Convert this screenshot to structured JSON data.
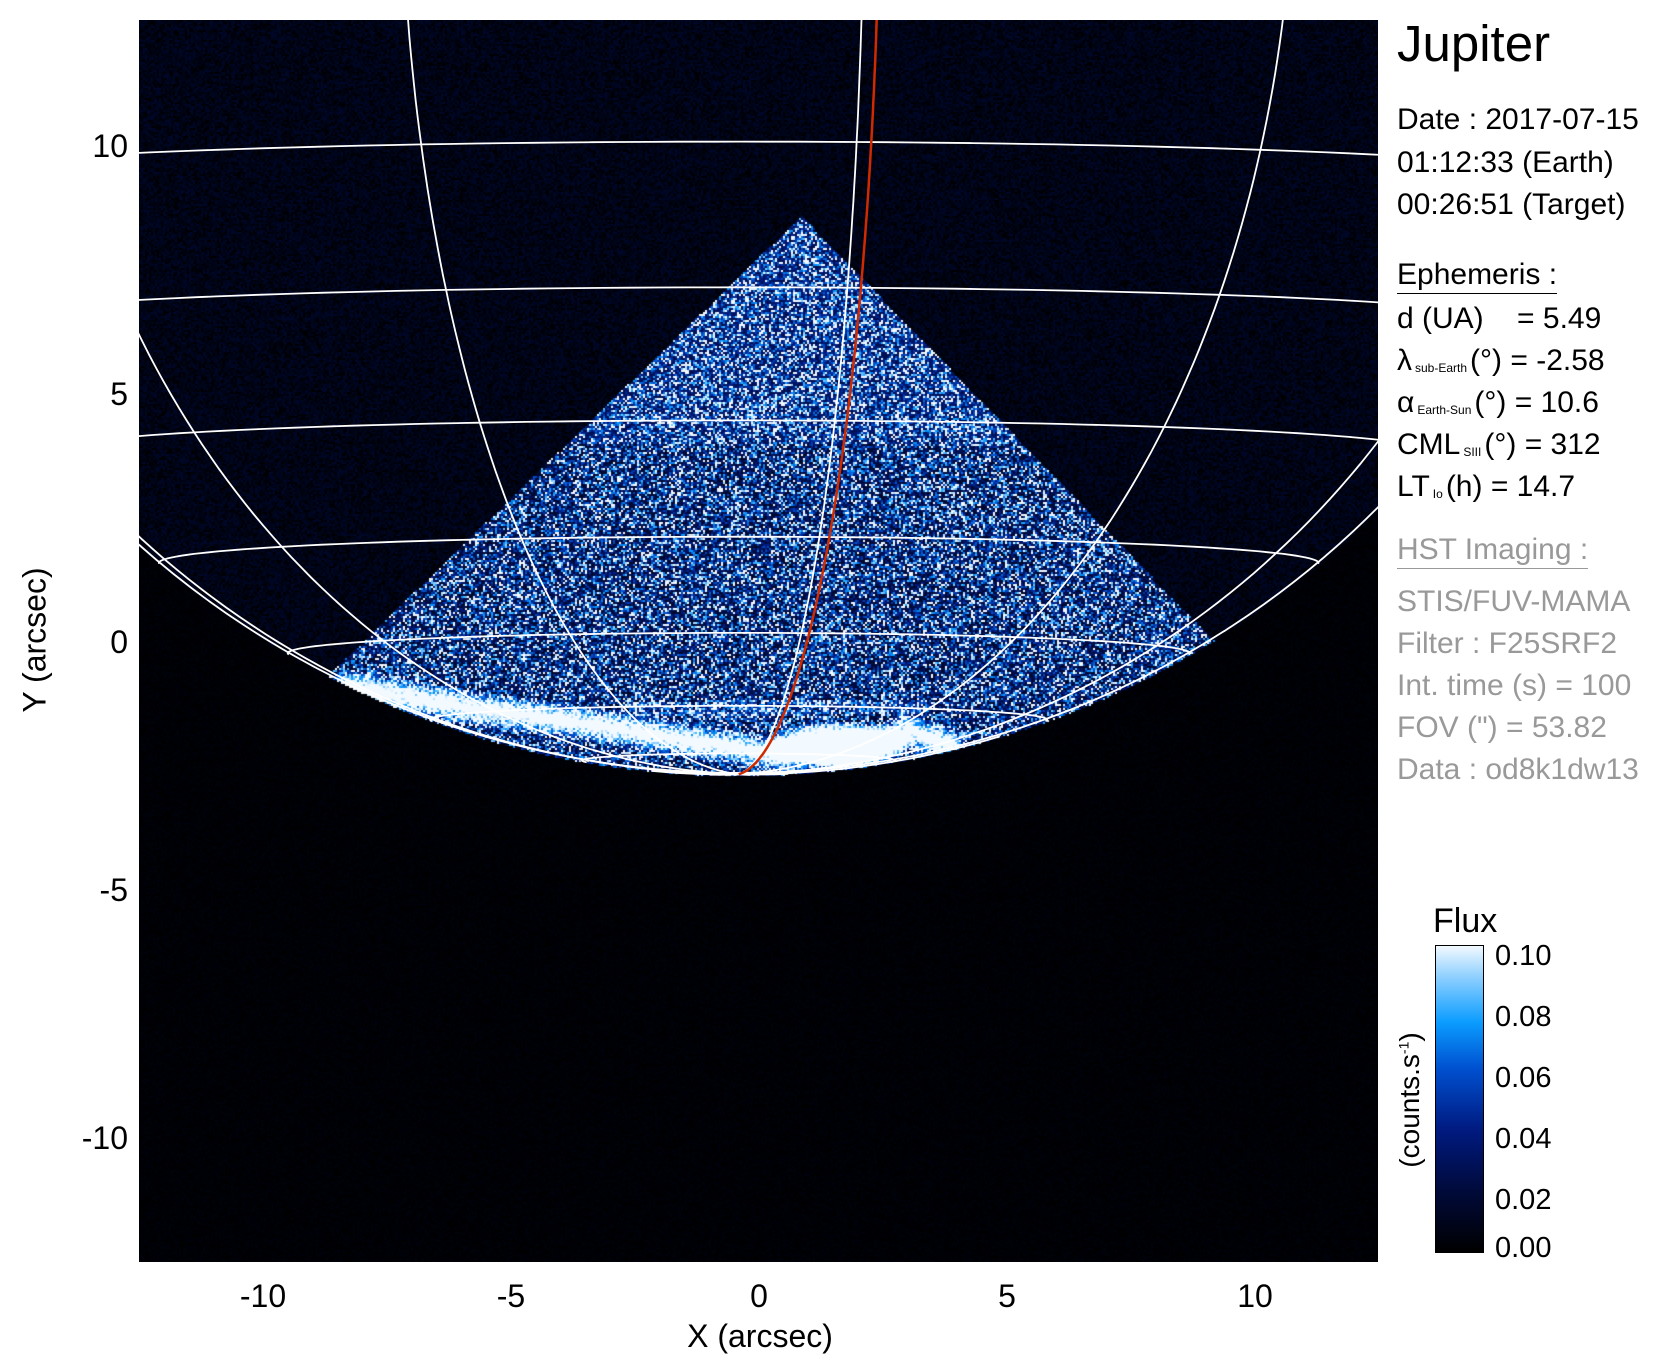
{
  "chart_data": {
    "type": "heatmap",
    "title": "Jupiter",
    "xlabel": "X (arcsec)",
    "ylabel": "Y (arcsec)",
    "xlim": [
      -12.5,
      12.5
    ],
    "ylim": [
      -12.5,
      12.5
    ],
    "x_ticks": [
      "-10",
      "-5",
      "0",
      "5",
      "10"
    ],
    "y_ticks": [
      "10",
      "5",
      "0",
      "-5",
      "-10"
    ],
    "x_tick_values": [
      -10,
      -5,
      0,
      5,
      10
    ],
    "y_tick_values": [
      10,
      5,
      0,
      -5,
      -10
    ],
    "grid": "planetographic latitude/longitude overlay",
    "grid_color": "#ffffff",
    "highlight_line_color": "#d02a00",
    "colorbar": {
      "title": "Flux",
      "units": "(counts.s-1)",
      "range": [
        0.0,
        0.1
      ],
      "ticks": [
        "0.10",
        "0.08",
        "0.06",
        "0.04",
        "0.02",
        "0.00"
      ],
      "tick_values": [
        0.1,
        0.08,
        0.06,
        0.04,
        0.02,
        0.0
      ],
      "colors": [
        "#000000",
        "#001a80",
        "#0050d0",
        "#0a9cff",
        "#f2f9ff"
      ]
    }
  },
  "info": {
    "target": "Jupiter",
    "date": "Date : 2017-07-15",
    "time_earth": "01:12:33 (Earth)",
    "time_target": "00:26:51 (Target)",
    "ephemeris_header": "Ephemeris :",
    "d": {
      "label": "d (UA)",
      "value": "= 5.49"
    },
    "lambda": {
      "symbol": "λ",
      "sub": "sub-Earth",
      "unit": "(°)",
      "value": "= -2.58"
    },
    "alpha": {
      "symbol": "α",
      "sub": "Earth-Sun",
      "unit": "(°)",
      "value": "= 10.6"
    },
    "cml": {
      "symbol": "CML",
      "sub": "SIII",
      "unit": "(°)",
      "value": "= 312"
    },
    "lt": {
      "symbol": "LT",
      "sub": "Io",
      "unit": "(h)",
      "value": "= 14.7"
    },
    "hst_header": "HST Imaging :",
    "instrument": "STIS/FUV-MAMA",
    "filter": "Filter : F25SRF2",
    "int_time": "Int. time (s) = 100",
    "fov": "FOV (\") = 53.82",
    "data_id": "Data : od8k1dw13"
  }
}
